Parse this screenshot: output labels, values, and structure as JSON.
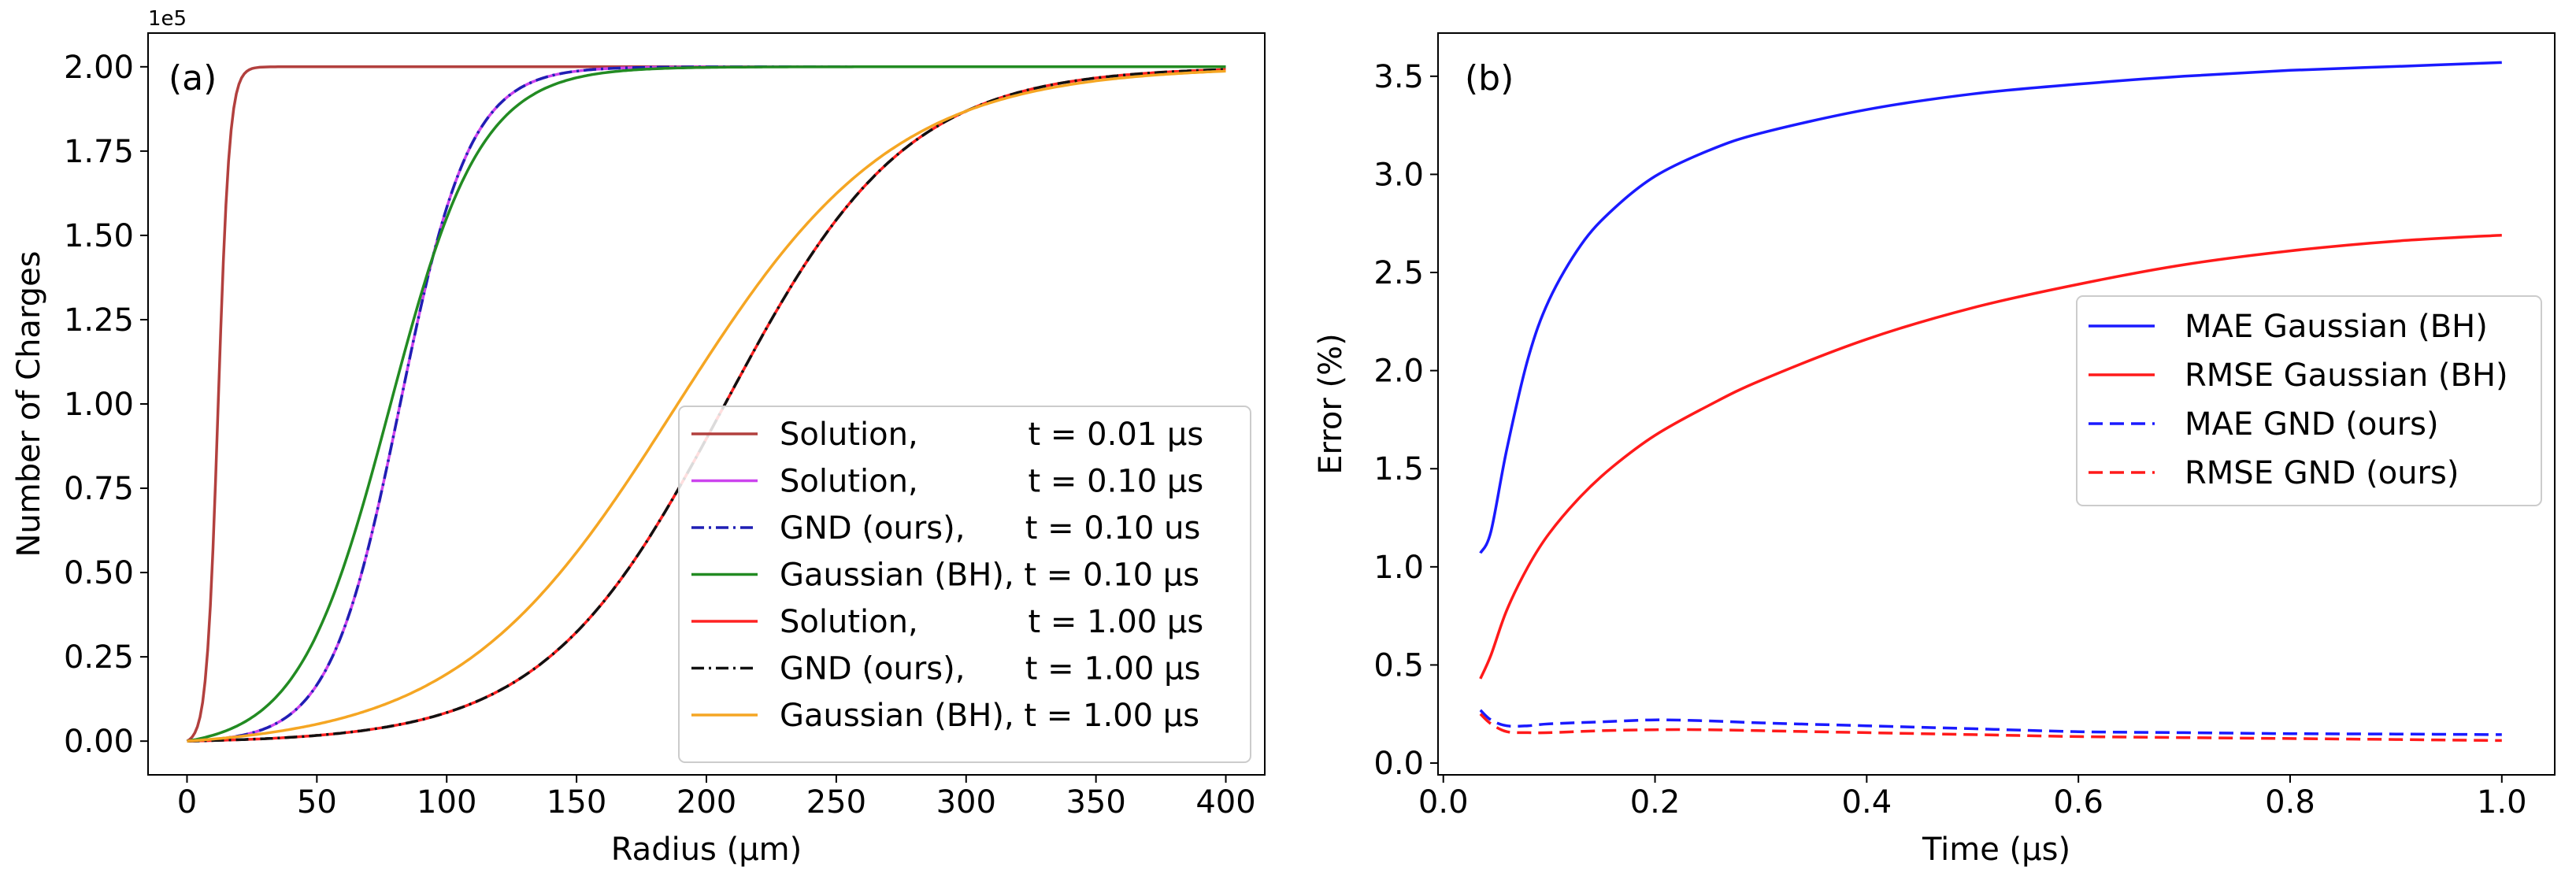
{
  "chart_data": [
    {
      "id": "panel-a",
      "type": "line",
      "panel_label": "(a)",
      "xlabel": "Radius (µm)",
      "ylabel": "Number of Charges",
      "y_offset_label": "1e5",
      "xlim": [
        -15,
        415
      ],
      "ylim": [
        -0.1,
        2.1
      ],
      "xticks": [
        0,
        50,
        100,
        150,
        200,
        250,
        300,
        350,
        400
      ],
      "xtick_labels": [
        "0",
        "50",
        "100",
        "150",
        "200",
        "250",
        "300",
        "350",
        "400"
      ],
      "yticks": [
        0.0,
        0.25,
        0.5,
        0.75,
        1.0,
        1.25,
        1.5,
        1.75,
        2.0
      ],
      "ytick_labels": [
        "0.00",
        "0.25",
        "0.50",
        "0.75",
        "1.00",
        "1.25",
        "1.50",
        "1.75",
        "2.00"
      ],
      "y_unit_note": "values in units of 1e5",
      "legend_position": "lower-right",
      "series": [
        {
          "name": "Solution,           t = 0.01 µs",
          "color": "#b2403e",
          "style": "solid",
          "curve": {
            "model": "logistic",
            "mid": 12,
            "scale": 2.2,
            "max": 2.0
          }
        },
        {
          "name": "Solution,           t = 0.10 µs",
          "color": "#cc44ee",
          "style": "solid",
          "curve": {
            "model": "logistic",
            "mid": 82,
            "scale": 13.5,
            "max": 2.0
          }
        },
        {
          "name": "GND (ours),      t = 0.10 us",
          "color": "#1f1fb4",
          "style": "dashdot",
          "curve": {
            "model": "logistic",
            "mid": 82,
            "scale": 13.5,
            "max": 2.0
          }
        },
        {
          "name": "Gaussian (BH), t = 0.10 µs",
          "color": "#228b22",
          "style": "solid",
          "curve": {
            "model": "logistic",
            "mid": 78,
            "scale": 17.5,
            "max": 2.0
          }
        },
        {
          "name": "Solution,           t = 1.00 µs",
          "color": "#ff2222",
          "style": "solid",
          "curve": {
            "model": "logistic",
            "mid": 207,
            "scale": 35,
            "max": 2.0
          }
        },
        {
          "name": "GND (ours),      t = 1.00 µs",
          "color": "#111111",
          "style": "dashdot",
          "curve": {
            "model": "logistic",
            "mid": 207,
            "scale": 35,
            "max": 2.0
          }
        },
        {
          "name": "Gaussian (BH), t = 1.00 µs",
          "color": "#f5a623",
          "style": "solid",
          "curve": {
            "model": "logistic",
            "mid": 188,
            "scale": 42,
            "max": 2.0
          }
        }
      ]
    },
    {
      "id": "panel-b",
      "type": "line",
      "panel_label": "(b)",
      "xlabel": "Time (µs)",
      "ylabel": "Error (%)",
      "xlim": [
        -0.005,
        1.05
      ],
      "ylim": [
        -0.06,
        3.72
      ],
      "xticks": [
        0.0,
        0.2,
        0.4,
        0.6,
        0.8,
        1.0
      ],
      "xtick_labels": [
        "0.0",
        "0.2",
        "0.4",
        "0.6",
        "0.8",
        "1.0"
      ],
      "yticks": [
        0.0,
        0.5,
        1.0,
        1.5,
        2.0,
        2.5,
        3.0,
        3.5
      ],
      "ytick_labels": [
        "0.0",
        "0.5",
        "1.0",
        "1.5",
        "2.0",
        "2.5",
        "3.0",
        "3.5"
      ],
      "legend_position": "center-right",
      "series": [
        {
          "name": "MAE Gaussian (BH)",
          "color": "#1a1aff",
          "style": "solid",
          "x": [
            0.035,
            0.045,
            0.06,
            0.08,
            0.1,
            0.13,
            0.16,
            0.2,
            0.25,
            0.3,
            0.4,
            0.5,
            0.6,
            0.7,
            0.8,
            0.9,
            1.0
          ],
          "y": [
            1.07,
            1.18,
            1.6,
            2.06,
            2.36,
            2.64,
            2.82,
            2.99,
            3.12,
            3.21,
            3.33,
            3.41,
            3.46,
            3.5,
            3.53,
            3.55,
            3.57
          ]
        },
        {
          "name": "RMSE Gaussian (BH)",
          "color": "#ff1a1a",
          "style": "solid",
          "x": [
            0.035,
            0.045,
            0.06,
            0.08,
            0.1,
            0.13,
            0.16,
            0.2,
            0.25,
            0.3,
            0.4,
            0.5,
            0.6,
            0.7,
            0.8,
            0.9,
            1.0
          ],
          "y": [
            0.43,
            0.55,
            0.78,
            1.0,
            1.17,
            1.36,
            1.51,
            1.67,
            1.82,
            1.95,
            2.16,
            2.32,
            2.44,
            2.54,
            2.61,
            2.66,
            2.69
          ]
        },
        {
          "name": "MAE GND (ours)",
          "color": "#1a1aff",
          "style": "dashed",
          "x": [
            0.035,
            0.045,
            0.06,
            0.08,
            0.1,
            0.15,
            0.2,
            0.25,
            0.3,
            0.4,
            0.5,
            0.6,
            0.7,
            0.8,
            0.9,
            1.0
          ],
          "y": [
            0.27,
            0.22,
            0.19,
            0.19,
            0.2,
            0.21,
            0.22,
            0.215,
            0.205,
            0.19,
            0.175,
            0.16,
            0.155,
            0.15,
            0.148,
            0.145
          ]
        },
        {
          "name": "RMSE GND (ours)",
          "color": "#ff1a1a",
          "style": "dashed",
          "x": [
            0.035,
            0.045,
            0.06,
            0.08,
            0.1,
            0.15,
            0.2,
            0.25,
            0.3,
            0.4,
            0.5,
            0.6,
            0.7,
            0.8,
            0.9,
            1.0
          ],
          "y": [
            0.25,
            0.2,
            0.16,
            0.155,
            0.155,
            0.165,
            0.17,
            0.17,
            0.165,
            0.155,
            0.145,
            0.135,
            0.13,
            0.125,
            0.12,
            0.115
          ]
        }
      ]
    }
  ]
}
